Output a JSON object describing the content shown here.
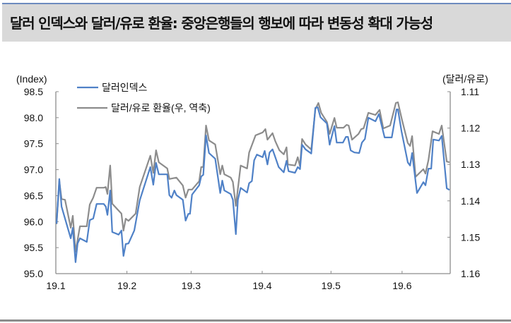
{
  "header": {
    "title": "달러 인덱스와 달러/유로 환율: 중앙은행들의 행보에 따라 변동성 확대 가능성"
  },
  "chart_data": {
    "type": "line",
    "title": "달러 인덱스와 달러/유로 환율: 중앙은행들의 행보에 따라 변동성 확대 가능성",
    "x_unit": "day of year 2019 (0 = Jan 1)",
    "x_ticks": [
      {
        "label": "19.1",
        "x": 0
      },
      {
        "label": "19.2",
        "x": 31
      },
      {
        "label": "19.3",
        "x": 59
      },
      {
        "label": "19.4",
        "x": 90
      },
      {
        "label": "19.5",
        "x": 120
      },
      {
        "label": "19.6",
        "x": 151
      }
    ],
    "xlim": [
      0,
      172
    ],
    "left_axis": {
      "label": "(Index)",
      "ylim": [
        95.0,
        98.5
      ],
      "ticks": [
        "95.0",
        "95.5",
        "96.0",
        "96.5",
        "97.0",
        "97.5",
        "98.0",
        "98.5"
      ]
    },
    "right_axis": {
      "label": "(달러/유로)",
      "ylim": [
        1.16,
        1.11
      ],
      "inverted": true,
      "ticks": [
        "1.11",
        "1.12",
        "1.13",
        "1.14",
        "1.15",
        "1.16"
      ]
    },
    "legend_position": "top-left",
    "grid": false,
    "colors": {
      "dxy": "#4f81c7",
      "eurusd": "#8c8c8c",
      "axis": "#8c8c8c"
    },
    "series": [
      {
        "name": "달러인덱스",
        "axis": "left",
        "points": [
          [
            0.3,
            95.96
          ],
          [
            1.5,
            96.82
          ],
          [
            2.5,
            96.29
          ],
          [
            6.5,
            95.68
          ],
          [
            7.4,
            95.88
          ],
          [
            8.6,
            95.22
          ],
          [
            9.5,
            95.58
          ],
          [
            10.5,
            95.68
          ],
          [
            13.5,
            95.61
          ],
          [
            14.8,
            96.03
          ],
          [
            16.3,
            96.06
          ],
          [
            17.8,
            96.34
          ],
          [
            20.9,
            96.34
          ],
          [
            21.8,
            96.29
          ],
          [
            22.5,
            96.13
          ],
          [
            23.7,
            96.6
          ],
          [
            24.6,
            95.8
          ],
          [
            27.4,
            95.75
          ],
          [
            28.6,
            95.83
          ],
          [
            29.5,
            95.34
          ],
          [
            30.5,
            95.57
          ],
          [
            31.7,
            95.58
          ],
          [
            34.2,
            95.83
          ],
          [
            36.6,
            96.41
          ],
          [
            41.2,
            97.05
          ],
          [
            42.5,
            96.71
          ],
          [
            43.7,
            97.13
          ],
          [
            44.9,
            96.91
          ],
          [
            48.6,
            96.91
          ],
          [
            49.5,
            96.51
          ],
          [
            50.5,
            96.46
          ],
          [
            51.7,
            96.6
          ],
          [
            52.6,
            96.51
          ],
          [
            55.4,
            96.42
          ],
          [
            56.6,
            96.02
          ],
          [
            57.8,
            96.15
          ],
          [
            58.5,
            96.15
          ],
          [
            59.4,
            96.52
          ],
          [
            62.5,
            96.7
          ],
          [
            63.4,
            96.87
          ],
          [
            64.3,
            96.9
          ],
          [
            65.5,
            97.66
          ],
          [
            66.8,
            97.32
          ],
          [
            69.5,
            97.21
          ],
          [
            71.7,
            96.55
          ],
          [
            72.6,
            96.79
          ],
          [
            73.5,
            96.6
          ],
          [
            76.3,
            96.53
          ],
          [
            77.2,
            96.42
          ],
          [
            78.5,
            95.76
          ],
          [
            79.4,
            96.42
          ],
          [
            80.6,
            96.65
          ],
          [
            83.4,
            96.56
          ],
          [
            84.3,
            96.74
          ],
          [
            85.5,
            96.78
          ],
          [
            86.5,
            97.18
          ],
          [
            87.7,
            97.29
          ],
          [
            90.2,
            97.24
          ],
          [
            91.1,
            97.36
          ],
          [
            92.3,
            97.1
          ],
          [
            93.2,
            97.33
          ],
          [
            94.5,
            97.39
          ],
          [
            95.7,
            97.24
          ],
          [
            97.2,
            97.05
          ],
          [
            99.4,
            96.95
          ],
          [
            100.6,
            97.17
          ],
          [
            101.5,
            96.97
          ],
          [
            104.3,
            96.94
          ],
          [
            105.5,
            97.05
          ],
          [
            106.5,
            97.01
          ],
          [
            107.4,
            97.48
          ],
          [
            108.9,
            97.39
          ],
          [
            111.4,
            97.31
          ],
          [
            113.2,
            98.19
          ],
          [
            114.2,
            98.2
          ],
          [
            115.4,
            98.01
          ],
          [
            118.2,
            97.89
          ],
          [
            119.4,
            97.48
          ],
          [
            121.5,
            97.84
          ],
          [
            122.5,
            97.52
          ],
          [
            125.2,
            97.52
          ],
          [
            126.5,
            97.63
          ],
          [
            127.4,
            97.63
          ],
          [
            128.6,
            97.37
          ],
          [
            130.2,
            97.33
          ],
          [
            132.3,
            97.32
          ],
          [
            133.5,
            97.52
          ],
          [
            134.8,
            97.59
          ],
          [
            136.3,
            98.0
          ],
          [
            139.4,
            97.93
          ],
          [
            140.9,
            98.07
          ],
          [
            143.4,
            97.62
          ],
          [
            146.5,
            97.62
          ],
          [
            148.6,
            98.16
          ],
          [
            149.2,
            98.16
          ],
          [
            150.8,
            97.73
          ],
          [
            153.5,
            97.14
          ],
          [
            154.5,
            97.08
          ],
          [
            155.4,
            97.32
          ],
          [
            157.5,
            96.55
          ],
          [
            160.3,
            96.76
          ],
          [
            161.2,
            96.7
          ],
          [
            162.5,
            97.02
          ],
          [
            163.7,
            97.02
          ],
          [
            164.6,
            97.58
          ],
          [
            167.1,
            97.56
          ],
          [
            168.3,
            97.65
          ],
          [
            170.5,
            96.64
          ],
          [
            171.7,
            96.61
          ]
        ]
      },
      {
        "name": "달러/유로 환율(우, 역축)",
        "axis": "right",
        "points": [
          [
            0.3,
            1.1464
          ],
          [
            1.5,
            1.1346
          ],
          [
            2.5,
            1.1395
          ],
          [
            4.0,
            1.1397
          ],
          [
            6.5,
            1.1474
          ],
          [
            7.4,
            1.1441
          ],
          [
            8.6,
            1.154
          ],
          [
            10.5,
            1.147
          ],
          [
            13.5,
            1.147
          ],
          [
            14.8,
            1.141
          ],
          [
            16.3,
            1.1391
          ],
          [
            17.8,
            1.1364
          ],
          [
            20.9,
            1.1364
          ],
          [
            21.8,
            1.1362
          ],
          [
            22.5,
            1.1381
          ],
          [
            23.7,
            1.1303
          ],
          [
            24.6,
            1.1408
          ],
          [
            28.6,
            1.1435
          ],
          [
            29.5,
            1.1482
          ],
          [
            30.5,
            1.1449
          ],
          [
            31.7,
            1.1455
          ],
          [
            34.8,
            1.1435
          ],
          [
            36.6,
            1.1362
          ],
          [
            41.2,
            1.1276
          ],
          [
            42.5,
            1.1323
          ],
          [
            43.7,
            1.1261
          ],
          [
            44.9,
            1.1294
          ],
          [
            48.6,
            1.1311
          ],
          [
            49.5,
            1.134
          ],
          [
            52.6,
            1.1336
          ],
          [
            55.4,
            1.1358
          ],
          [
            56.6,
            1.1391
          ],
          [
            57.8,
            1.1369
          ],
          [
            59.4,
            1.1369
          ],
          [
            62.5,
            1.1346
          ],
          [
            63.4,
            1.1307
          ],
          [
            64.3,
            1.1307
          ],
          [
            65.5,
            1.1193
          ],
          [
            66.8,
            1.1234
          ],
          [
            69.5,
            1.1245
          ],
          [
            71.7,
            1.1327
          ],
          [
            72.6,
            1.1303
          ],
          [
            73.5,
            1.1327
          ],
          [
            76.3,
            1.1336
          ],
          [
            77.2,
            1.1348
          ],
          [
            78.5,
            1.1414
          ],
          [
            80.6,
            1.1303
          ],
          [
            83.4,
            1.1311
          ],
          [
            84.3,
            1.1267
          ],
          [
            87.1,
            1.122
          ],
          [
            90.2,
            1.1212
          ],
          [
            91.4,
            1.1203
          ],
          [
            92.3,
            1.1232
          ],
          [
            94.5,
            1.1214
          ],
          [
            95.7,
            1.1236
          ],
          [
            97.5,
            1.1261
          ],
          [
            99.4,
            1.1272
          ],
          [
            100.6,
            1.1253
          ],
          [
            101.2,
            1.13
          ],
          [
            104.3,
            1.1303
          ],
          [
            105.5,
            1.128
          ],
          [
            106.5,
            1.1305
          ],
          [
            107.4,
            1.123
          ],
          [
            108.9,
            1.1245
          ],
          [
            111.4,
            1.1259
          ],
          [
            113.2,
            1.1148
          ],
          [
            114.5,
            1.1131
          ],
          [
            115.7,
            1.1158
          ],
          [
            118.2,
            1.1183
          ],
          [
            119.4,
            1.1216
          ],
          [
            121.5,
            1.1172
          ],
          [
            122.5,
            1.1199
          ],
          [
            125.5,
            1.1199
          ],
          [
            126.8,
            1.1191
          ],
          [
            127.7,
            1.1193
          ],
          [
            129.2,
            1.1232
          ],
          [
            132.0,
            1.1216
          ],
          [
            133.2,
            1.1203
          ],
          [
            134.2,
            1.1201
          ],
          [
            136.3,
            1.1158
          ],
          [
            139.4,
            1.1164
          ],
          [
            141.2,
            1.115
          ],
          [
            142.8,
            1.1201
          ],
          [
            145.8,
            1.1193
          ],
          [
            148.3,
            1.1131
          ],
          [
            149.2,
            1.1129
          ],
          [
            151.1,
            1.1181
          ],
          [
            153.5,
            1.1241
          ],
          [
            154.5,
            1.1249
          ],
          [
            155.4,
            1.1222
          ],
          [
            156.9,
            1.1334
          ],
          [
            160.3,
            1.1313
          ],
          [
            161.2,
            1.1325
          ],
          [
            162.5,
            1.1288
          ],
          [
            164.3,
            1.1209
          ],
          [
            167.1,
            1.1216
          ],
          [
            168.3,
            1.1193
          ],
          [
            170.5,
            1.1292
          ],
          [
            171.7,
            1.1294
          ]
        ]
      }
    ]
  }
}
